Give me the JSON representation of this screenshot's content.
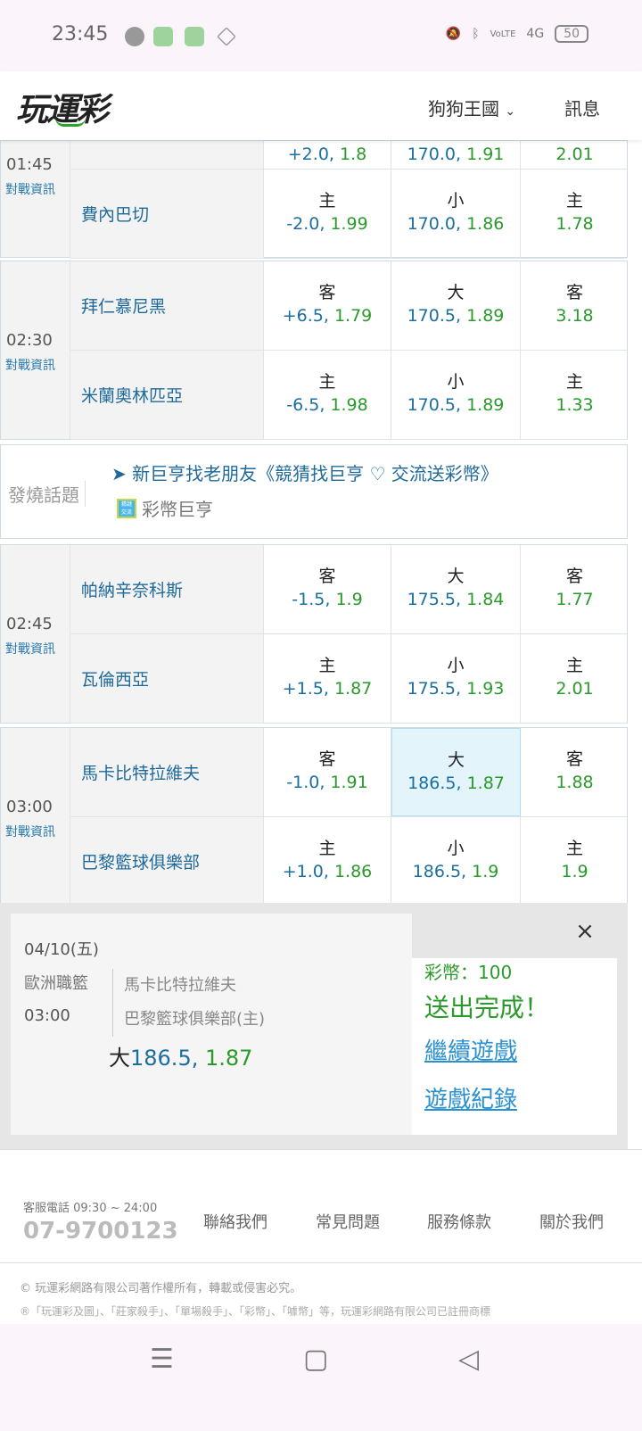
{
  "status": {
    "time": "23:45",
    "battery": "50",
    "network": "4G"
  },
  "header": {
    "logo": "玩運彩",
    "user": "狗狗王國",
    "messages": "訊息"
  },
  "info_label": "對戰資訊",
  "games": [
    {
      "time": "01:45",
      "rows": [
        {
          "team": "",
          "spread": {
            "label": "",
            "value": "+2.0",
            "odds": "1.8"
          },
          "total": {
            "label": "",
            "value": "170.0",
            "odds": "1.91"
          },
          "ml": {
            "label": "",
            "odds": "2.01"
          }
        },
        {
          "team": "費內巴切",
          "spread": {
            "label": "主",
            "value": "-2.0",
            "odds": "1.99"
          },
          "total": {
            "label": "小",
            "value": "170.0",
            "odds": "1.86"
          },
          "ml": {
            "label": "主",
            "odds": "1.78"
          }
        }
      ]
    },
    {
      "time": "02:30",
      "rows": [
        {
          "team": "拜仁慕尼黑",
          "spread": {
            "label": "客",
            "value": "+6.5",
            "odds": "1.79"
          },
          "total": {
            "label": "大",
            "value": "170.5",
            "odds": "1.89"
          },
          "ml": {
            "label": "客",
            "odds": "3.18"
          }
        },
        {
          "team": "米蘭奧林匹亞",
          "spread": {
            "label": "主",
            "value": "-6.5",
            "odds": "1.98"
          },
          "total": {
            "label": "小",
            "value": "170.5",
            "odds": "1.89"
          },
          "ml": {
            "label": "主",
            "odds": "1.33"
          }
        }
      ]
    },
    {
      "time": "02:45",
      "rows": [
        {
          "team": "帕納辛奈科斯",
          "spread": {
            "label": "客",
            "value": "-1.5",
            "odds": "1.9"
          },
          "total": {
            "label": "大",
            "value": "175.5",
            "odds": "1.84"
          },
          "ml": {
            "label": "客",
            "odds": "1.77"
          }
        },
        {
          "team": "瓦倫西亞",
          "spread": {
            "label": "主",
            "value": "+1.5",
            "odds": "1.87"
          },
          "total": {
            "label": "小",
            "value": "175.5",
            "odds": "1.93"
          },
          "ml": {
            "label": "主",
            "odds": "2.01"
          }
        }
      ]
    },
    {
      "time": "03:00",
      "rows": [
        {
          "team": "馬卡比特拉維夫",
          "spread": {
            "label": "客",
            "value": "-1.0",
            "odds": "1.91"
          },
          "total": {
            "label": "大",
            "value": "186.5",
            "odds": "1.87",
            "selected": true
          },
          "ml": {
            "label": "客",
            "odds": "1.88"
          }
        },
        {
          "team": "巴黎籃球俱樂部",
          "spread": {
            "label": "主",
            "value": "+1.0",
            "odds": "1.86"
          },
          "total": {
            "label": "小",
            "value": "186.5",
            "odds": "1.9"
          },
          "ml": {
            "label": "主",
            "odds": "1.9"
          }
        }
      ]
    }
  ],
  "hot": {
    "label": "發燒話題",
    "link": "新巨亨找老朋友《競猜找巨亨 ♡ 交流送彩幣》",
    "sub": "彩幣巨亨",
    "badge": "猜謎 交流"
  },
  "ticket": {
    "date": "04/10(五)",
    "league": "歐洲職籃",
    "time": "03:00",
    "away": "馬卡比特拉維夫",
    "home": "巴黎籃球俱樂部(主)",
    "pick_label": "大",
    "pick_value": "186.5",
    "pick_odds": "1.87"
  },
  "result": {
    "coins": "彩幣：100",
    "done": "送出完成！",
    "continue": "繼續遊戲",
    "history": "遊戲紀錄",
    "close": "×"
  },
  "footer": {
    "hours": "客服電話 09:30 ~ 24:00",
    "phone": "07-9700123",
    "links": [
      "聯絡我們",
      "常見問題",
      "服務條款",
      "關於我們"
    ],
    "copyright": "© 玩運彩網路有限公司著作權所有，轉載或侵害必究。",
    "trademark": "®「玩運彩及圖」、「莊家殺手」、「單場殺手」、「彩幣」、「噱幣」等，玩運彩網路有限公司已註冊商標"
  },
  "colors": {
    "spread": "#1a6fa0",
    "odds": "#2a9a2a",
    "team": "#1f6a9a"
  }
}
